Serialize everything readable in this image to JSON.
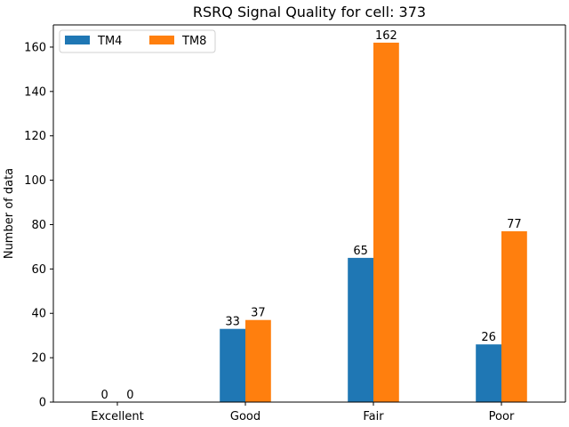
{
  "chart_data": {
    "type": "bar",
    "title": "RSRQ Signal Quality for cell: 373",
    "xlabel": "",
    "ylabel": "Number of data",
    "categories": [
      "Excellent",
      "Good",
      "Fair",
      "Poor"
    ],
    "series": [
      {
        "name": "TM4",
        "color": "#1f77b4",
        "values": [
          0,
          33,
          65,
          26
        ]
      },
      {
        "name": "TM8",
        "color": "#ff7f0e",
        "values": [
          0,
          37,
          162,
          77
        ]
      }
    ],
    "ylim": [
      0,
      170
    ],
    "yticks": [
      0,
      20,
      40,
      60,
      80,
      100,
      120,
      140,
      160
    ],
    "grid": false,
    "legend_position": "top-left",
    "legend_columns": 2
  }
}
